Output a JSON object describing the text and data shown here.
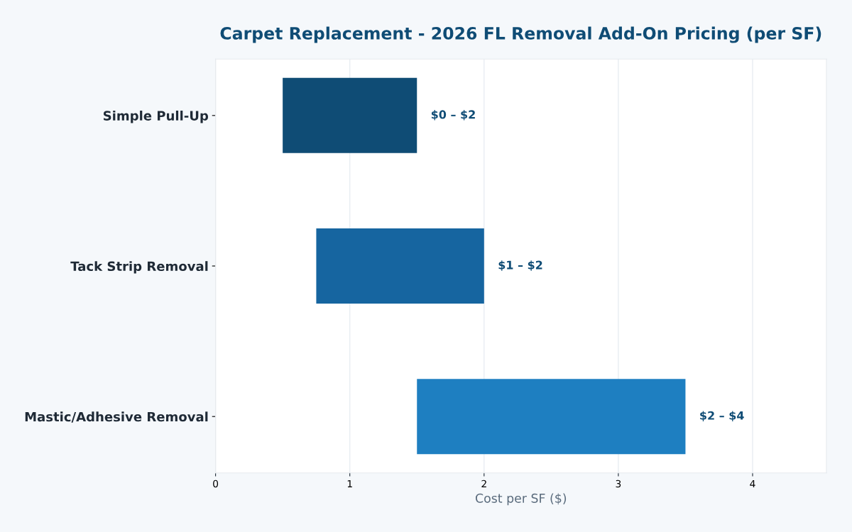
{
  "chart_data": {
    "type": "bar",
    "orientation": "horizontal",
    "title": "Carpet Replacement - 2026 FL Removal Add-On Pricing (per SF)",
    "xlabel": "Cost per SF ($)",
    "categories": [
      "Simple Pull-Up",
      "Tack Strip Removal",
      "Mastic/Adhesive Removal"
    ],
    "base": [
      0.5,
      0.75,
      1.5
    ],
    "values": [
      1,
      1.25,
      2
    ],
    "colors": [
      "#0f4c75",
      "#1665a0",
      "#1e7fc1"
    ],
    "annotations": [
      {
        "text": "$0 – $2",
        "x": 1.5,
        "y": "Simple Pull-Up"
      },
      {
        "text": "$1 – $2",
        "x": 2.0,
        "y": "Tack Strip Removal"
      },
      {
        "text": "$2 – $4",
        "x": 3.5,
        "y": "Mastic/Adhesive Removal"
      }
    ],
    "xlim": [
      0,
      4.55
    ],
    "xticks": [
      0,
      1,
      2,
      3,
      4
    ],
    "grid": "x",
    "legend": false
  }
}
